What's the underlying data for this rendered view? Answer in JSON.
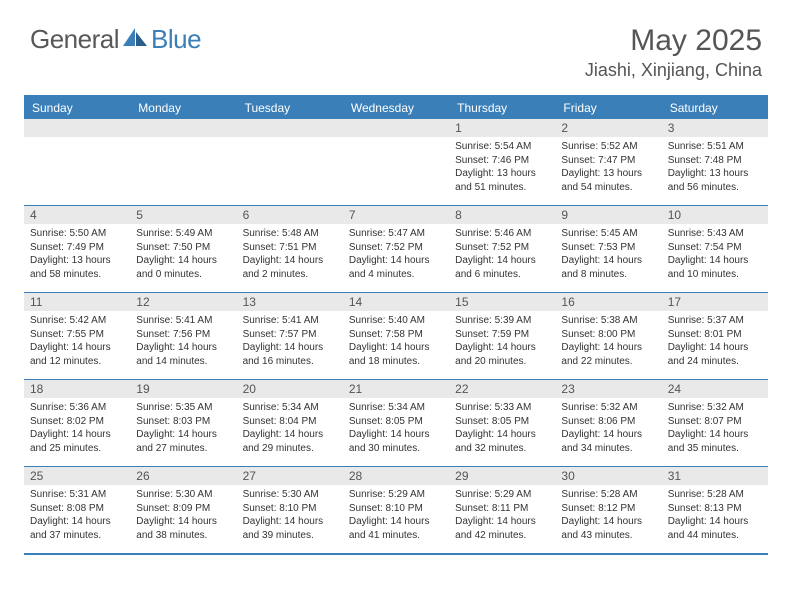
{
  "logo": {
    "general": "General",
    "blue": "Blue"
  },
  "title": "May 2025",
  "location": "Jiashi, Xinjiang, China",
  "colors": {
    "accent": "#3b7fb8",
    "header_gray": "#e9e9e9",
    "text_dark": "#333333",
    "text_mid": "#555555",
    "bg": "#ffffff"
  },
  "weekdays": [
    "Sunday",
    "Monday",
    "Tuesday",
    "Wednesday",
    "Thursday",
    "Friday",
    "Saturday"
  ],
  "weeks": [
    [
      {
        "num": "",
        "lines": []
      },
      {
        "num": "",
        "lines": []
      },
      {
        "num": "",
        "lines": []
      },
      {
        "num": "",
        "lines": []
      },
      {
        "num": "1",
        "lines": [
          "Sunrise: 5:54 AM",
          "Sunset: 7:46 PM",
          "Daylight: 13 hours and 51 minutes."
        ]
      },
      {
        "num": "2",
        "lines": [
          "Sunrise: 5:52 AM",
          "Sunset: 7:47 PM",
          "Daylight: 13 hours and 54 minutes."
        ]
      },
      {
        "num": "3",
        "lines": [
          "Sunrise: 5:51 AM",
          "Sunset: 7:48 PM",
          "Daylight: 13 hours and 56 minutes."
        ]
      }
    ],
    [
      {
        "num": "4",
        "lines": [
          "Sunrise: 5:50 AM",
          "Sunset: 7:49 PM",
          "Daylight: 13 hours and 58 minutes."
        ]
      },
      {
        "num": "5",
        "lines": [
          "Sunrise: 5:49 AM",
          "Sunset: 7:50 PM",
          "Daylight: 14 hours and 0 minutes."
        ]
      },
      {
        "num": "6",
        "lines": [
          "Sunrise: 5:48 AM",
          "Sunset: 7:51 PM",
          "Daylight: 14 hours and 2 minutes."
        ]
      },
      {
        "num": "7",
        "lines": [
          "Sunrise: 5:47 AM",
          "Sunset: 7:52 PM",
          "Daylight: 14 hours and 4 minutes."
        ]
      },
      {
        "num": "8",
        "lines": [
          "Sunrise: 5:46 AM",
          "Sunset: 7:52 PM",
          "Daylight: 14 hours and 6 minutes."
        ]
      },
      {
        "num": "9",
        "lines": [
          "Sunrise: 5:45 AM",
          "Sunset: 7:53 PM",
          "Daylight: 14 hours and 8 minutes."
        ]
      },
      {
        "num": "10",
        "lines": [
          "Sunrise: 5:43 AM",
          "Sunset: 7:54 PM",
          "Daylight: 14 hours and 10 minutes."
        ]
      }
    ],
    [
      {
        "num": "11",
        "lines": [
          "Sunrise: 5:42 AM",
          "Sunset: 7:55 PM",
          "Daylight: 14 hours and 12 minutes."
        ]
      },
      {
        "num": "12",
        "lines": [
          "Sunrise: 5:41 AM",
          "Sunset: 7:56 PM",
          "Daylight: 14 hours and 14 minutes."
        ]
      },
      {
        "num": "13",
        "lines": [
          "Sunrise: 5:41 AM",
          "Sunset: 7:57 PM",
          "Daylight: 14 hours and 16 minutes."
        ]
      },
      {
        "num": "14",
        "lines": [
          "Sunrise: 5:40 AM",
          "Sunset: 7:58 PM",
          "Daylight: 14 hours and 18 minutes."
        ]
      },
      {
        "num": "15",
        "lines": [
          "Sunrise: 5:39 AM",
          "Sunset: 7:59 PM",
          "Daylight: 14 hours and 20 minutes."
        ]
      },
      {
        "num": "16",
        "lines": [
          "Sunrise: 5:38 AM",
          "Sunset: 8:00 PM",
          "Daylight: 14 hours and 22 minutes."
        ]
      },
      {
        "num": "17",
        "lines": [
          "Sunrise: 5:37 AM",
          "Sunset: 8:01 PM",
          "Daylight: 14 hours and 24 minutes."
        ]
      }
    ],
    [
      {
        "num": "18",
        "lines": [
          "Sunrise: 5:36 AM",
          "Sunset: 8:02 PM",
          "Daylight: 14 hours and 25 minutes."
        ]
      },
      {
        "num": "19",
        "lines": [
          "Sunrise: 5:35 AM",
          "Sunset: 8:03 PM",
          "Daylight: 14 hours and 27 minutes."
        ]
      },
      {
        "num": "20",
        "lines": [
          "Sunrise: 5:34 AM",
          "Sunset: 8:04 PM",
          "Daylight: 14 hours and 29 minutes."
        ]
      },
      {
        "num": "21",
        "lines": [
          "Sunrise: 5:34 AM",
          "Sunset: 8:05 PM",
          "Daylight: 14 hours and 30 minutes."
        ]
      },
      {
        "num": "22",
        "lines": [
          "Sunrise: 5:33 AM",
          "Sunset: 8:05 PM",
          "Daylight: 14 hours and 32 minutes."
        ]
      },
      {
        "num": "23",
        "lines": [
          "Sunrise: 5:32 AM",
          "Sunset: 8:06 PM",
          "Daylight: 14 hours and 34 minutes."
        ]
      },
      {
        "num": "24",
        "lines": [
          "Sunrise: 5:32 AM",
          "Sunset: 8:07 PM",
          "Daylight: 14 hours and 35 minutes."
        ]
      }
    ],
    [
      {
        "num": "25",
        "lines": [
          "Sunrise: 5:31 AM",
          "Sunset: 8:08 PM",
          "Daylight: 14 hours and 37 minutes."
        ]
      },
      {
        "num": "26",
        "lines": [
          "Sunrise: 5:30 AM",
          "Sunset: 8:09 PM",
          "Daylight: 14 hours and 38 minutes."
        ]
      },
      {
        "num": "27",
        "lines": [
          "Sunrise: 5:30 AM",
          "Sunset: 8:10 PM",
          "Daylight: 14 hours and 39 minutes."
        ]
      },
      {
        "num": "28",
        "lines": [
          "Sunrise: 5:29 AM",
          "Sunset: 8:10 PM",
          "Daylight: 14 hours and 41 minutes."
        ]
      },
      {
        "num": "29",
        "lines": [
          "Sunrise: 5:29 AM",
          "Sunset: 8:11 PM",
          "Daylight: 14 hours and 42 minutes."
        ]
      },
      {
        "num": "30",
        "lines": [
          "Sunrise: 5:28 AM",
          "Sunset: 8:12 PM",
          "Daylight: 14 hours and 43 minutes."
        ]
      },
      {
        "num": "31",
        "lines": [
          "Sunrise: 5:28 AM",
          "Sunset: 8:13 PM",
          "Daylight: 14 hours and 44 minutes."
        ]
      }
    ]
  ]
}
